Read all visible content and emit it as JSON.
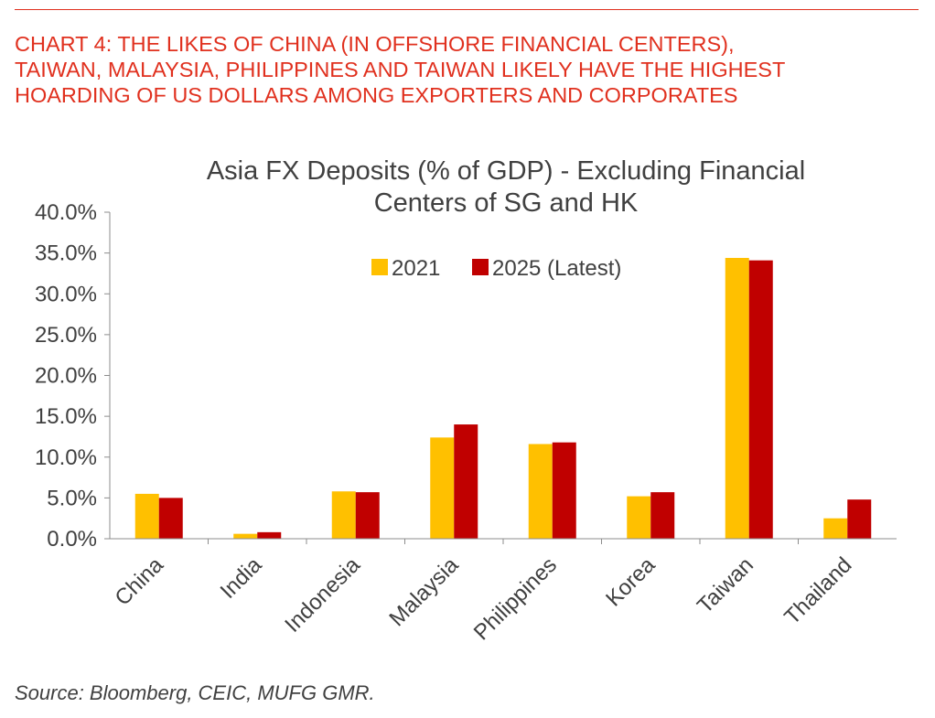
{
  "headline": {
    "lines": [
      "CHART 4: THE LIKES OF CHINA (IN OFFSHORE FINANCIAL CENTERS),",
      "TAIWAN, MALAYSIA, PHILIPPINES AND TAIWAN LIKELY HAVE THE HIGHEST",
      "HOARDING OF US DOLLARS AMONG EXPORTERS AND CORPORATES"
    ],
    "color": "#e0301e"
  },
  "source": "Source: Bloomberg, CEIC, MUFG GMR.",
  "chart_data": {
    "type": "bar",
    "title": [
      "Asia FX Deposits (% of GDP) - Excluding Financial",
      "Centers of SG and HK"
    ],
    "xlabel": "",
    "ylabel": "",
    "categories": [
      "China",
      "India",
      "Indonesia",
      "Malaysia",
      "Philippines",
      "Korea",
      "Taiwan",
      "Thailand"
    ],
    "series": [
      {
        "name": "2021",
        "color": "#ffc000",
        "values": [
          5.5,
          0.6,
          5.8,
          12.4,
          11.6,
          5.2,
          34.4,
          2.5
        ]
      },
      {
        "name": "2025 (Latest)",
        "color": "#c00000",
        "values": [
          5.0,
          0.8,
          5.7,
          14.0,
          11.8,
          5.7,
          34.1,
          4.8
        ]
      }
    ],
    "ylim": [
      0,
      40
    ],
    "yticks": [
      0,
      5,
      10,
      15,
      20,
      25,
      30,
      35,
      40
    ],
    "ytick_labels": [
      "0.0%",
      "5.0%",
      "10.0%",
      "15.0%",
      "20.0%",
      "25.0%",
      "30.0%",
      "35.0%",
      "40.0%"
    ],
    "grid": false,
    "legend_position": "top-center"
  }
}
